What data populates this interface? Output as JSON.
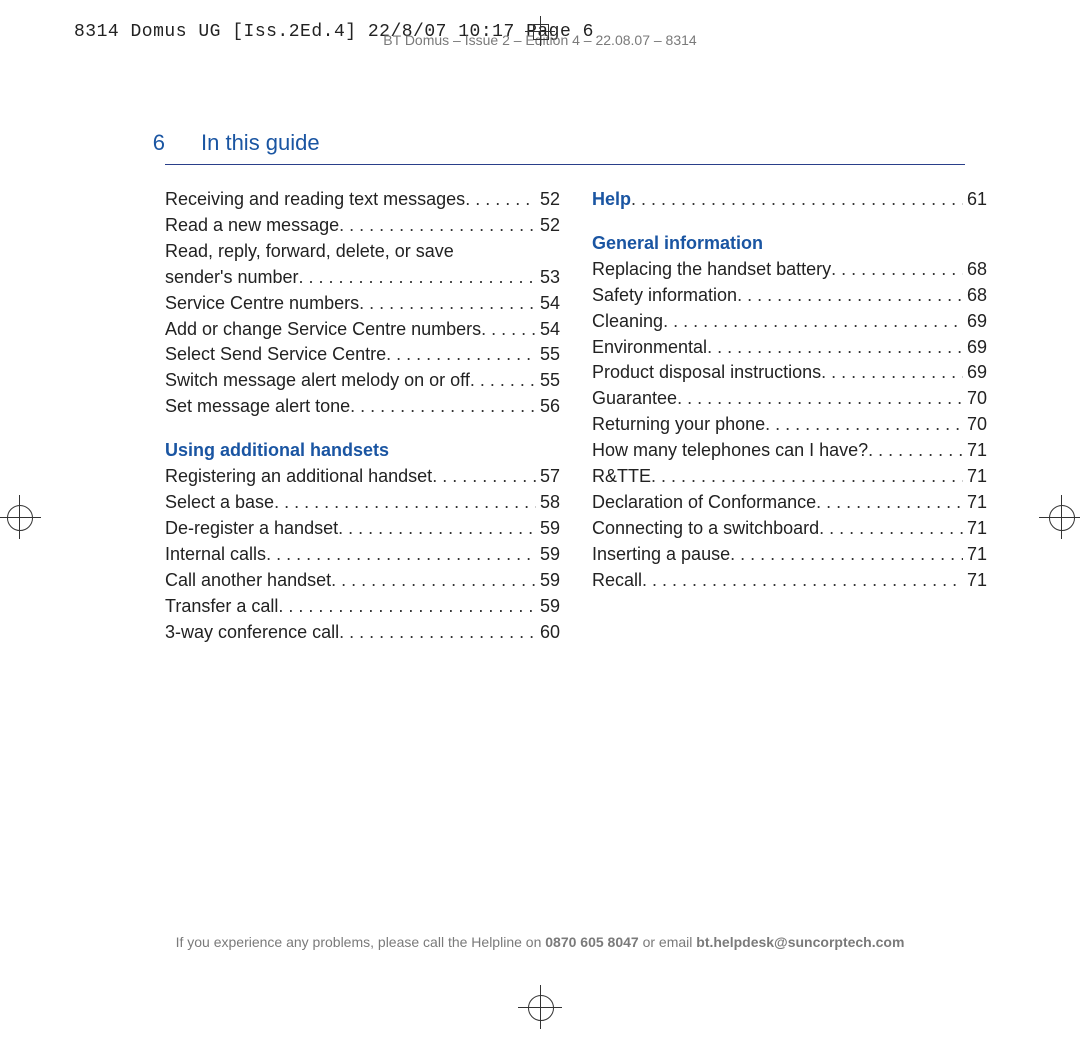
{
  "print_header": "8314 Domus UG [Iss.2Ed.4]  22/8/07  10:17  Page 6",
  "doc_footer_top": "BT Domus – Issue 2 – Edition 4 – 22.08.07 – 8314",
  "page_number": "6",
  "section_title": "In this guide",
  "colors": {
    "accent": "#1a55a2",
    "rule": "#2a3f8a",
    "text": "#222222",
    "muted": "#7a7a7a",
    "background": "#ffffff"
  },
  "left_column": {
    "group1": [
      {
        "label": "Receiving and reading text messages",
        "page": "52"
      },
      {
        "label": "Read a new message",
        "page": "52"
      },
      {
        "label_line1": "Read, reply, forward, delete, or save",
        "label_line2": "sender's number",
        "page": "53"
      },
      {
        "label": "Service Centre numbers",
        "page": "54"
      },
      {
        "label": "Add or change Service Centre numbers",
        "page": "54"
      },
      {
        "label": "Select Send Service Centre",
        "page": "55"
      },
      {
        "label": "Switch message alert melody on or off",
        "page": "55"
      },
      {
        "label": "Set message alert tone",
        "page": "56"
      }
    ],
    "heading2": "Using additional handsets",
    "group2": [
      {
        "label": "Registering an additional handset",
        "page": "57"
      },
      {
        "label": "Select a base",
        "page": "58"
      },
      {
        "label": "De-register a handset",
        "page": "59"
      },
      {
        "label": "Internal calls",
        "page": "59"
      },
      {
        "label": "Call another handset",
        "page": "59"
      },
      {
        "label": "Transfer a call",
        "page": "59"
      },
      {
        "label": "3-way conference call",
        "page": "60"
      }
    ]
  },
  "right_column": {
    "help": {
      "label": "Help",
      "page": "61"
    },
    "heading": "General information",
    "items": [
      {
        "label": "Replacing the handset battery",
        "page": "68"
      },
      {
        "label": "Safety information",
        "page": "68"
      },
      {
        "label": "Cleaning",
        "page": "69"
      },
      {
        "label": "Environmental",
        "page": "69"
      },
      {
        "label": "Product disposal instructions",
        "page": "69"
      },
      {
        "label": "Guarantee",
        "page": "70"
      },
      {
        "label": "Returning your phone",
        "page": "70"
      },
      {
        "label": "How many telephones can I have?",
        "page": "71"
      },
      {
        "label": "R&TTE",
        "page": "71"
      },
      {
        "label": "Declaration of Conformance",
        "page": "71"
      },
      {
        "label": "Connecting to a switchboard",
        "page": "71"
      },
      {
        "label": "Inserting a pause",
        "page": "71"
      },
      {
        "label": "Recall",
        "page": "71"
      }
    ]
  },
  "footer": {
    "prefix": "If you experience any problems, please call the Helpline on ",
    "phone": "0870 605 8047",
    "mid": " or email ",
    "email": "bt.helpdesk@suncorptech.com"
  }
}
